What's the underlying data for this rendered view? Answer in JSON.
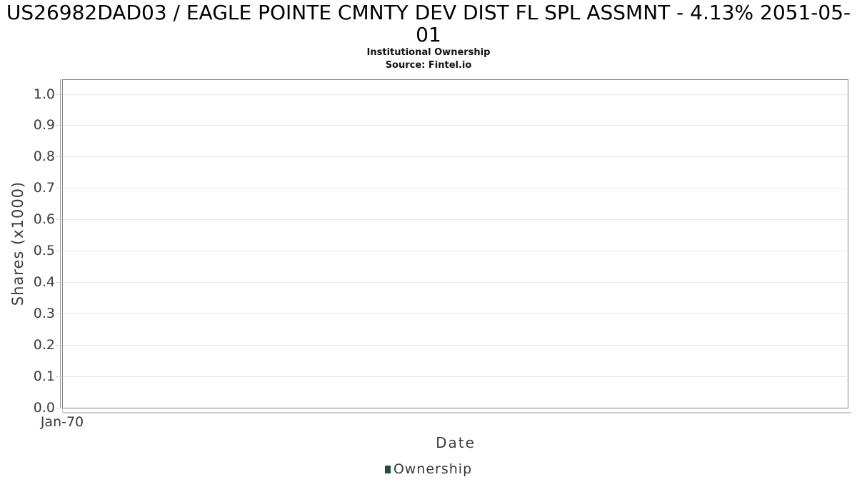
{
  "chart_data": {
    "type": "line",
    "title": "US26982DAD03 / EAGLE POINTE CMNTY DEV DIST FL SPL ASSMNT - 4.13% 2051-05-01",
    "subtitle": "Institutional Ownership",
    "source": "Source: Fintel.io",
    "xlabel": "Date",
    "ylabel": "Shares (x1000)",
    "x_ticks": [
      "Jan-70"
    ],
    "y_ticks": [
      "1.0",
      "0.9",
      "0.8",
      "0.7",
      "0.6",
      "0.5",
      "0.4",
      "0.3",
      "0.2",
      "0.1",
      "0.0"
    ],
    "ylim": [
      0.0,
      1.04
    ],
    "grid": "horizontal",
    "legend_position": "bottom",
    "series": [
      {
        "name": "Ownership",
        "color": "#1d5130",
        "x": [],
        "values": []
      }
    ]
  }
}
